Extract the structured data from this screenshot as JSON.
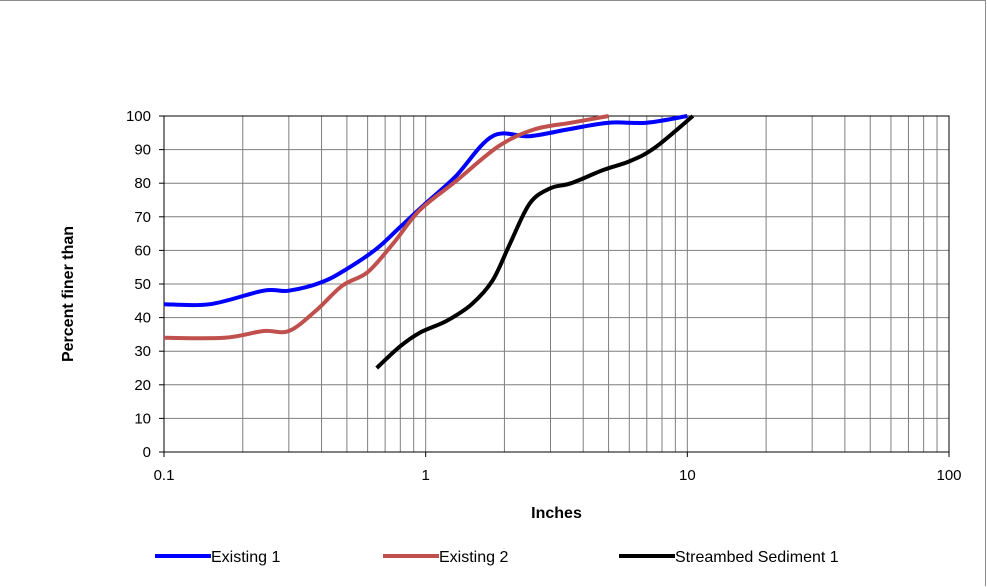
{
  "chart_data": {
    "type": "line",
    "title": "",
    "xlabel": "Inches",
    "ylabel": "Percent finer than",
    "x_scale": "log",
    "xlim": [
      0.1,
      100
    ],
    "ylim": [
      0,
      100
    ],
    "x_tick_labels": [
      "0.1",
      "1",
      "10",
      "100"
    ],
    "y_tick_labels": [
      "0",
      "10",
      "20",
      "30",
      "40",
      "50",
      "60",
      "70",
      "80",
      "90",
      "100"
    ],
    "grid": true,
    "legend_position": "bottom",
    "series": [
      {
        "name": "Existing 1",
        "color": "#0000ff",
        "points": [
          [
            0.1,
            44
          ],
          [
            0.15,
            44
          ],
          [
            0.24,
            48
          ],
          [
            0.3,
            48
          ],
          [
            0.4,
            50.5
          ],
          [
            0.5,
            54.5
          ],
          [
            0.65,
            60.5
          ],
          [
            0.8,
            67
          ],
          [
            1.0,
            74
          ],
          [
            1.3,
            82
          ],
          [
            1.8,
            94
          ],
          [
            2.5,
            94
          ],
          [
            3.5,
            96
          ],
          [
            5.0,
            98
          ],
          [
            7.0,
            98
          ],
          [
            10.0,
            100
          ]
        ]
      },
      {
        "name": "Existing 2",
        "color": "#c0504d",
        "points": [
          [
            0.1,
            34
          ],
          [
            0.17,
            34
          ],
          [
            0.24,
            36
          ],
          [
            0.3,
            36
          ],
          [
            0.38,
            42
          ],
          [
            0.48,
            49.5
          ],
          [
            0.6,
            53.5
          ],
          [
            0.75,
            62
          ],
          [
            0.95,
            72
          ],
          [
            1.3,
            80.5
          ],
          [
            1.9,
            91
          ],
          [
            2.6,
            96
          ],
          [
            3.6,
            98
          ],
          [
            5.0,
            100
          ]
        ]
      },
      {
        "name": "Streambed Sediment 1",
        "color": "#000000",
        "points": [
          [
            0.65,
            25
          ],
          [
            0.8,
            31.5
          ],
          [
            0.95,
            35.5
          ],
          [
            1.2,
            39
          ],
          [
            1.5,
            44
          ],
          [
            1.8,
            51
          ],
          [
            2.1,
            62
          ],
          [
            2.5,
            74
          ],
          [
            3.0,
            78.5
          ],
          [
            3.6,
            80
          ],
          [
            4.8,
            84
          ],
          [
            6.0,
            86.5
          ],
          [
            7.5,
            90.5
          ],
          [
            10.5,
            100
          ]
        ]
      }
    ]
  }
}
